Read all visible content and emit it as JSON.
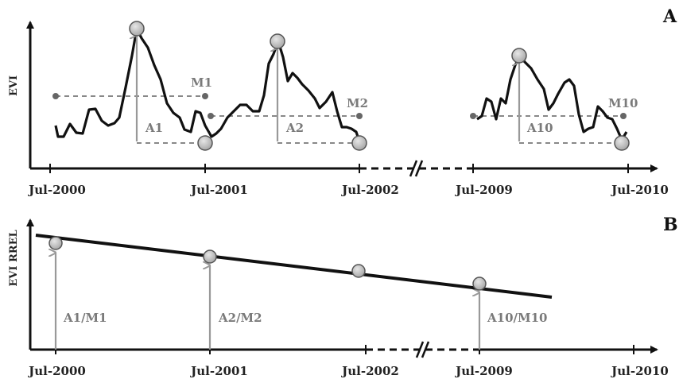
{
  "panel_a": {
    "label": "A",
    "y_axis_title": "EVI",
    "ticks": [
      "Jul-2000",
      "Jul-2001",
      "Jul-2002",
      "Jul-2009",
      "Jul-2010"
    ],
    "annotations": {
      "m1": "M1",
      "m2": "M2",
      "m10": "M10",
      "a1": "A1",
      "a2": "A2",
      "a10": "A10"
    }
  },
  "panel_b": {
    "label": "B",
    "y_axis_title": "EVI RREL",
    "ticks": [
      "Jul-2000",
      "Jul-2001",
      "Jul-2002",
      "Jul-2009",
      "Jul-2010"
    ],
    "annotations": {
      "a1m1": "A1/M1",
      "a2m2": "A2/M2",
      "a10m10": "A10/M10"
    }
  },
  "colors": {
    "line": "#111111",
    "marker_fill": "#bdbdbd",
    "marker_stroke": "#555555",
    "arrow": "#999999",
    "dashed": "#777777",
    "annotation_text": "#7a7a7a"
  }
}
